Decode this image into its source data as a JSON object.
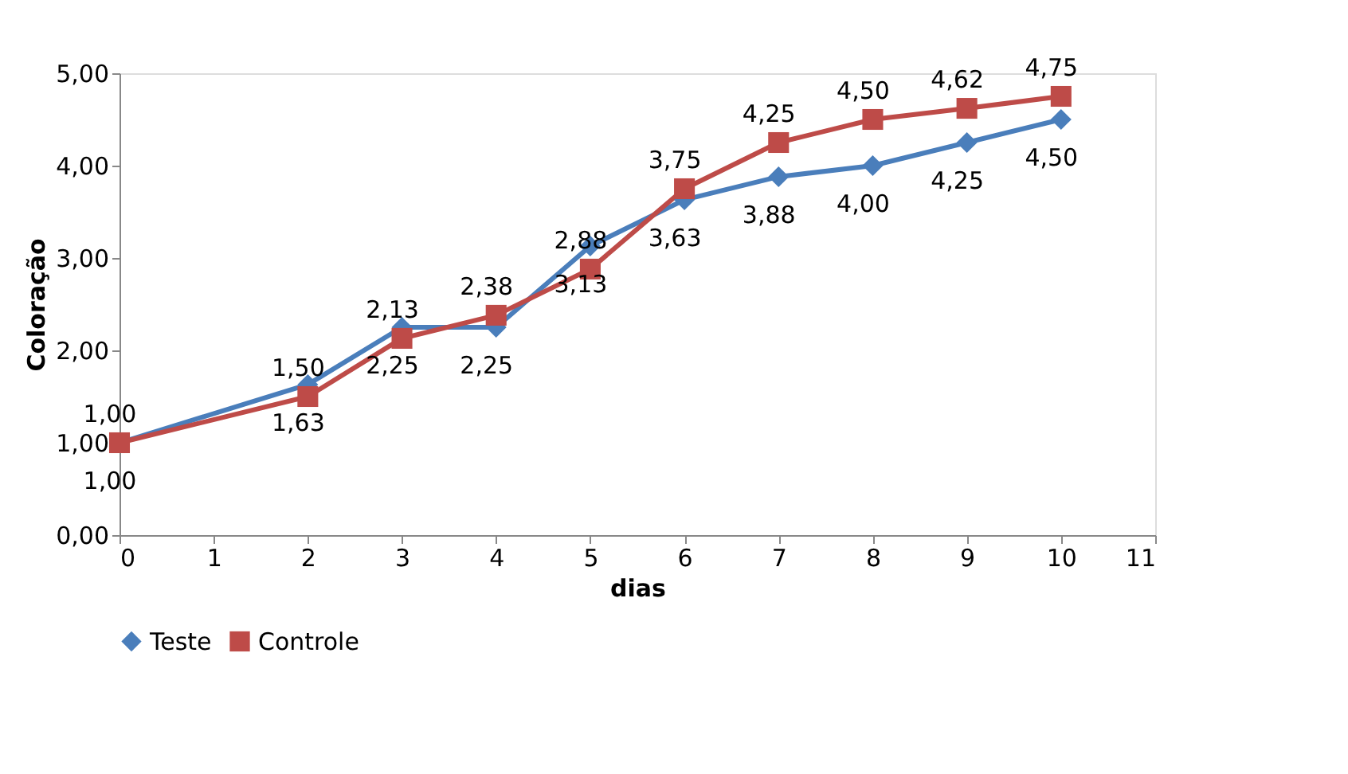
{
  "chart_data": {
    "type": "line",
    "xlabel": "dias",
    "ylabel": "Coloração",
    "x": [
      0,
      2,
      3,
      4,
      5,
      6,
      7,
      8,
      9,
      10
    ],
    "series": [
      {
        "name": "Teste",
        "color": "#4a7ebb",
        "marker": "diamond",
        "values": [
          1.0,
          1.63,
          2.25,
          2.25,
          3.13,
          3.63,
          3.88,
          4.0,
          4.25,
          4.5
        ],
        "value_labels": [
          "1,00",
          "1,63",
          "2,25",
          "2,25",
          "3,13",
          "3,63",
          "3,88",
          "4,00",
          "4,25",
          "4,50"
        ]
      },
      {
        "name": "Controle",
        "color": "#be4b48",
        "marker": "square",
        "values": [
          1.0,
          1.5,
          2.13,
          2.38,
          2.88,
          3.75,
          4.25,
          4.5,
          4.62,
          4.75
        ],
        "value_labels": [
          "1,00",
          "1,50",
          "2,13",
          "2,38",
          "2,88",
          "3,75",
          "4,25",
          "4,50",
          "4,62",
          "4,75"
        ]
      }
    ],
    "xlim": [
      0,
      11
    ],
    "xticks": [
      0,
      1,
      2,
      3,
      4,
      5,
      6,
      7,
      8,
      9,
      10,
      11
    ],
    "ylim": [
      0,
      5
    ],
    "yticks": [
      {
        "value": 0,
        "label": "0,00"
      },
      {
        "value": 1,
        "label": "1,00"
      },
      {
        "value": 2,
        "label": "2,00"
      },
      {
        "value": 3,
        "label": "3,00"
      },
      {
        "value": 4,
        "label": "4,00"
      },
      {
        "value": 5,
        "label": "5,00"
      }
    ],
    "grid": false,
    "legend": "bottom",
    "line_style": "solid"
  }
}
